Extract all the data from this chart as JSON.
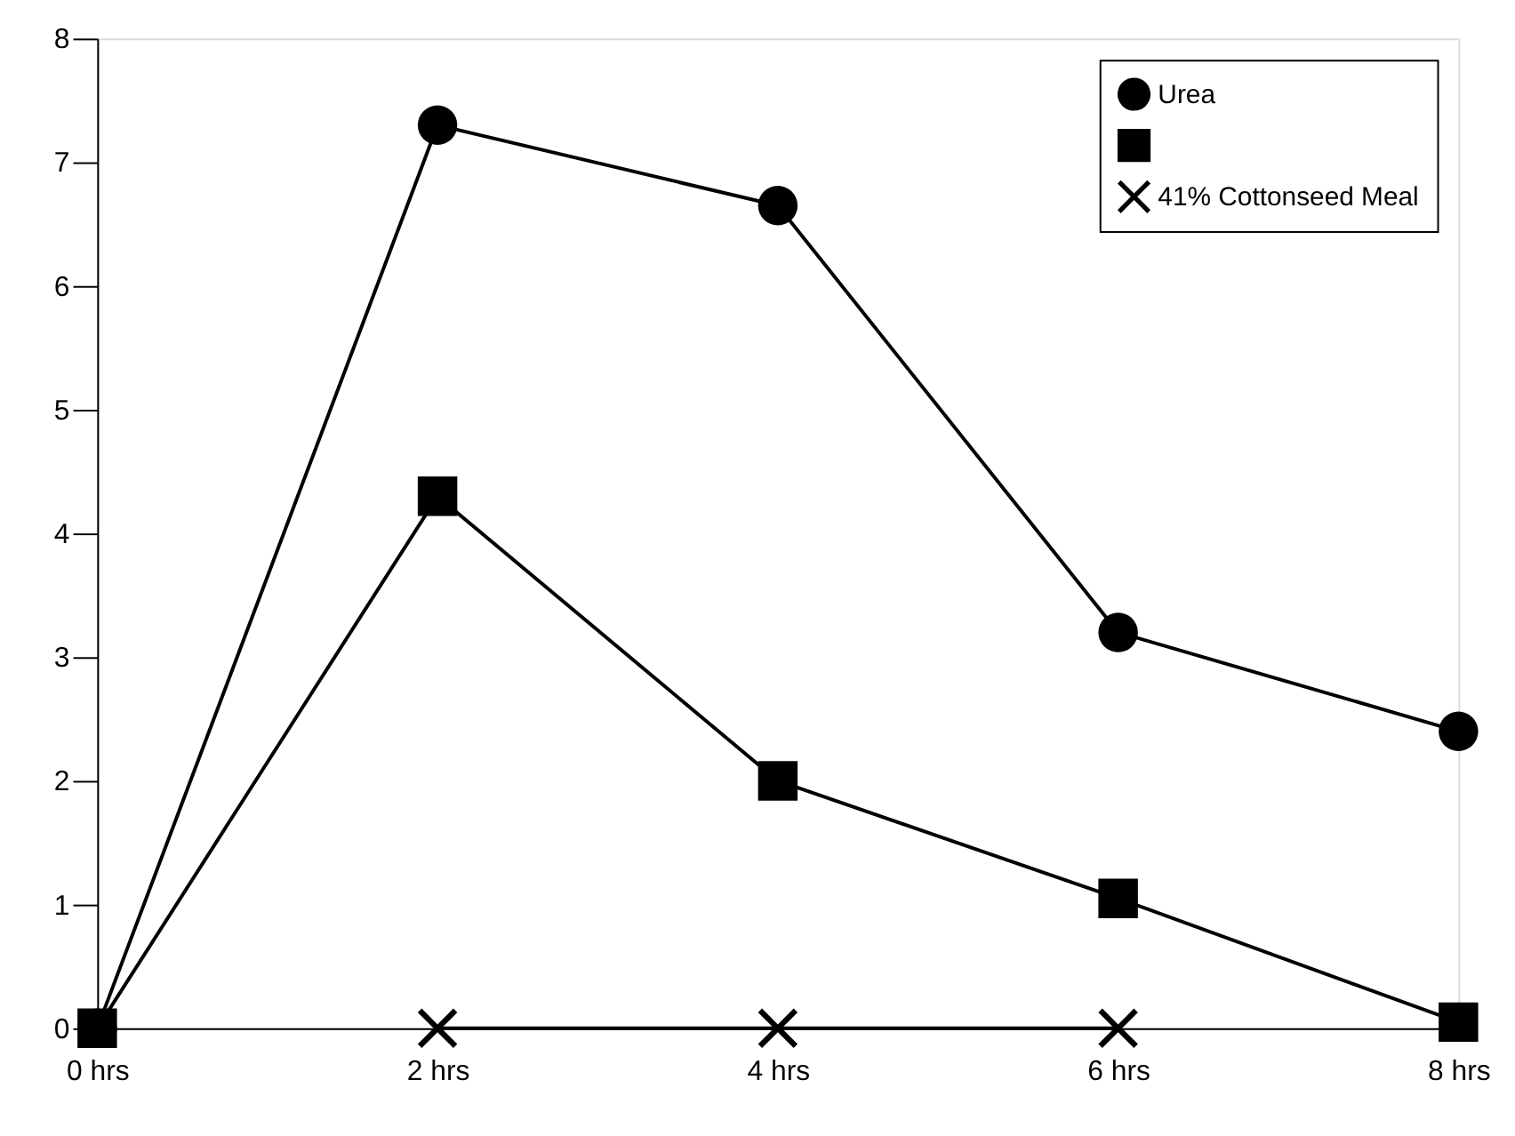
{
  "chart_data": {
    "type": "line",
    "categories": [
      "0 hrs",
      "2 hrs",
      "4 hrs",
      "6 hrs",
      "8 hrs"
    ],
    "ylim": [
      0,
      8
    ],
    "yticks": [
      0,
      1,
      2,
      3,
      4,
      5,
      6,
      7,
      8
    ],
    "grid": false,
    "legend": "top right",
    "series": [
      {
        "name": "Urea",
        "color": "#000000",
        "marker": "circle",
        "values": [
          0,
          7.3,
          6.65,
          3.2,
          2.4
        ]
      },
      {
        "color": "#000000",
        "marker": "square",
        "values": [
          0,
          4.3,
          2.0,
          1.05,
          0.05
        ]
      },
      {
        "name": "41% Cottonseed Meal",
        "color": "#000000",
        "marker": "cross",
        "values": [
          null,
          0,
          0,
          0,
          null
        ]
      }
    ]
  }
}
